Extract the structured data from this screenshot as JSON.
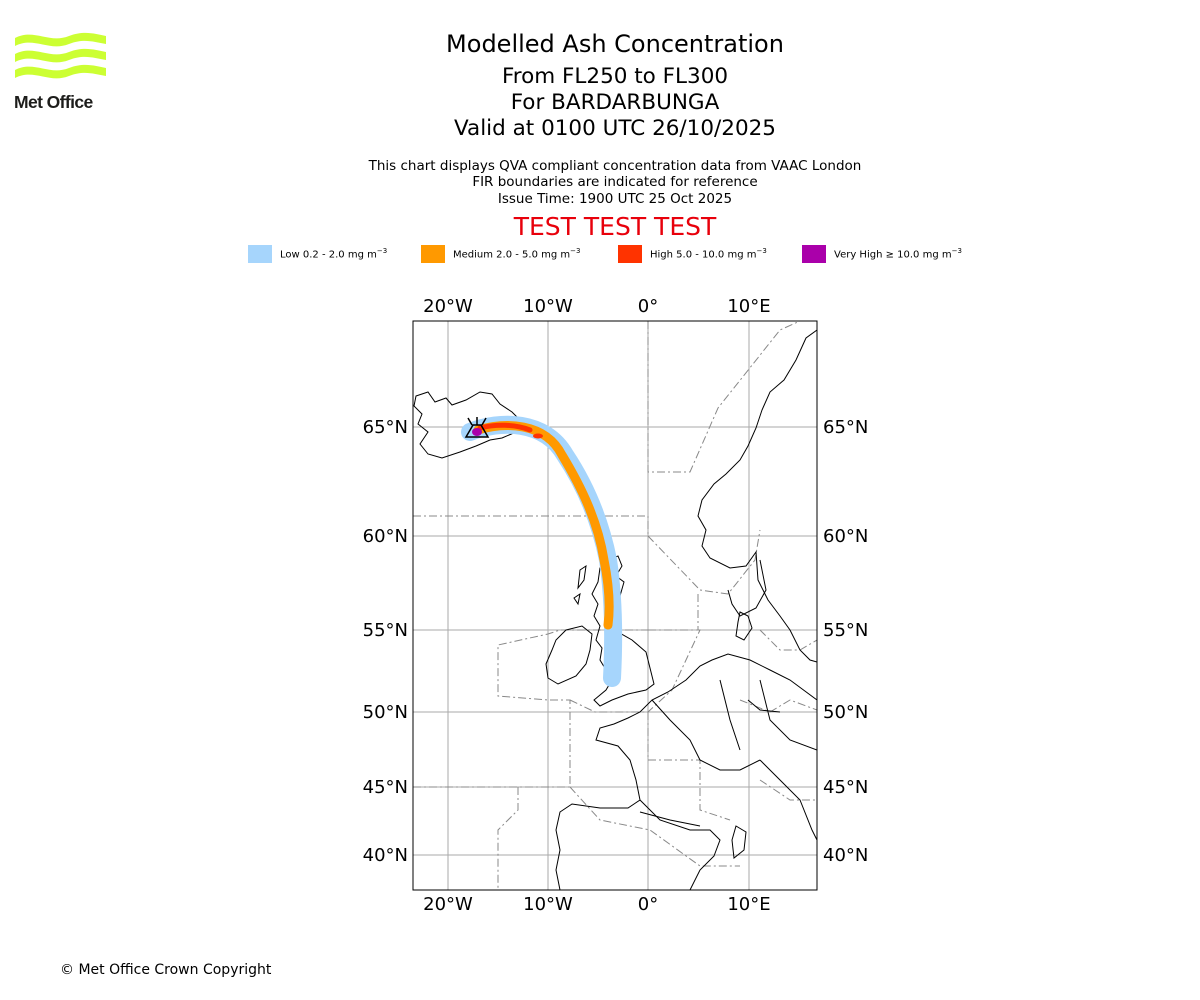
{
  "header": {
    "title": "Modelled Ash Concentration",
    "levels": "From FL250 to FL300",
    "volcano": "For BARDARBUNGA",
    "valid": "Valid at 0100 UTC 26/10/2025",
    "note1": "This chart displays QVA compliant concentration data from VAAC London",
    "note2": "FIR boundaries are indicated for reference",
    "issue": "Issue Time: 1900 UTC 25 Oct 2025",
    "test_banner": "TEST TEST TEST"
  },
  "logo": {
    "text": "Met Office",
    "color": "#ccff33"
  },
  "legend": [
    {
      "label": "Low 0.2 - 2.0 mg m",
      "exp": "−3",
      "color": "#a6d5fc"
    },
    {
      "label": "Medium 2.0 - 5.0 mg m",
      "exp": "−3",
      "color": "#ff9900"
    },
    {
      "label": "High 5.0 - 10.0 mg m",
      "exp": "−3",
      "color": "#ff3300"
    },
    {
      "label": "Very High  ≥  10.0 mg m",
      "exp": "−3",
      "color": "#aa00aa"
    }
  ],
  "axes": {
    "lon_labels": [
      "20°W",
      "10°W",
      "0°",
      "10°E"
    ],
    "lat_labels": [
      "65°N",
      "60°N",
      "55°N",
      "50°N",
      "45°N",
      "40°N"
    ]
  },
  "footer": {
    "copyright": "© Met Office Crown Copyright"
  }
}
